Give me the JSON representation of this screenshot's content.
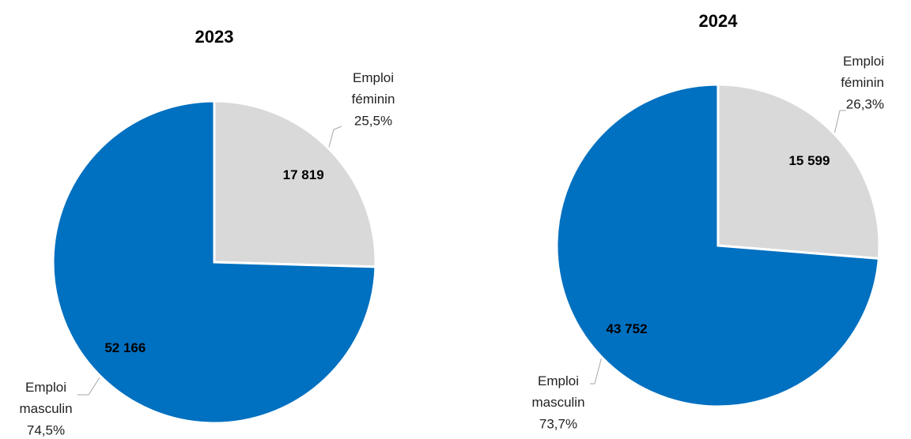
{
  "chart_data": [
    {
      "type": "pie",
      "title": "2023",
      "categories": [
        "Emploi féminin",
        "Emploi masculin"
      ],
      "values": [
        17819,
        52166
      ],
      "value_labels": [
        "17 819",
        "52 166"
      ],
      "percents": [
        25.5,
        74.5
      ],
      "percent_labels": [
        "25,5%",
        "74,5%"
      ],
      "colors": [
        "#d9d9d9",
        "#0070c0"
      ]
    },
    {
      "type": "pie",
      "title": "2024",
      "categories": [
        "Emploi féminin",
        "Emploi masculin"
      ],
      "values": [
        15599,
        43752
      ],
      "value_labels": [
        "15 599",
        "43 752"
      ],
      "percents": [
        26.3,
        73.7
      ],
      "percent_labels": [
        "26,3%",
        "73,7%"
      ],
      "colors": [
        "#d9d9d9",
        "#0070c0"
      ]
    }
  ]
}
